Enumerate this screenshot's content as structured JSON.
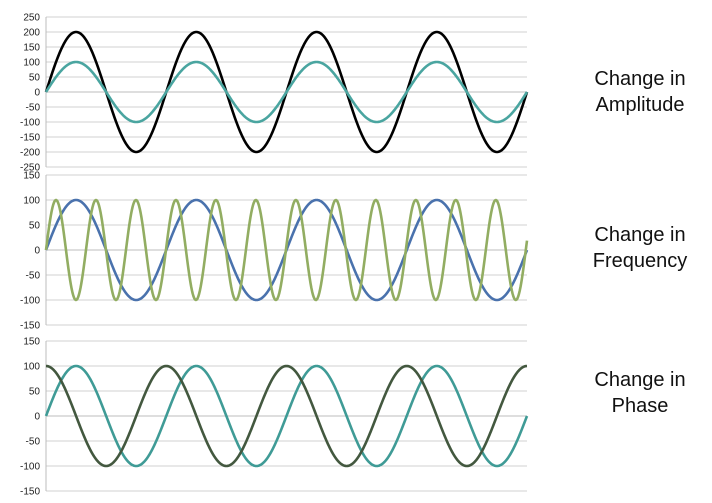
{
  "chart_data": [
    {
      "type": "line",
      "caption_lines": [
        "Change in",
        "Amplitude"
      ],
      "ylim": [
        -250,
        250
      ],
      "yticks": [
        250,
        200,
        150,
        100,
        50,
        0,
        -50,
        -100,
        -150,
        -200,
        -250
      ],
      "xlim": [
        0,
        16
      ],
      "grid": true,
      "series": [
        {
          "amplitude": 200,
          "period": 4,
          "phase": 0,
          "color": "#000000"
        },
        {
          "amplitude": 100,
          "period": 4,
          "phase": 0,
          "color": "#4aa5a0"
        }
      ]
    },
    {
      "type": "line",
      "caption_lines": [
        "Change in",
        "Frequency"
      ],
      "ylim": [
        -150,
        150
      ],
      "yticks": [
        150,
        100,
        50,
        0,
        -50,
        -100,
        -150
      ],
      "xlim": [
        0,
        16
      ],
      "grid": true,
      "series": [
        {
          "amplitude": 100,
          "period": 4,
          "phase": 0,
          "color": "#4a72ad"
        },
        {
          "amplitude": 100,
          "period": 1.33,
          "phase": 0,
          "color": "#92ad62"
        }
      ]
    },
    {
      "type": "line",
      "caption_lines": [
        "Change in",
        "Phase"
      ],
      "ylim": [
        -150,
        150
      ],
      "yticks": [
        150,
        100,
        50,
        0,
        -50,
        -100,
        -150
      ],
      "xlim": [
        0,
        16
      ],
      "grid": true,
      "series": [
        {
          "amplitude": 100,
          "period": 4,
          "phase": 0,
          "color": "#3f9b96"
        },
        {
          "amplitude": 100,
          "period": 4,
          "phase": 90,
          "color": "#43583f"
        }
      ]
    }
  ]
}
